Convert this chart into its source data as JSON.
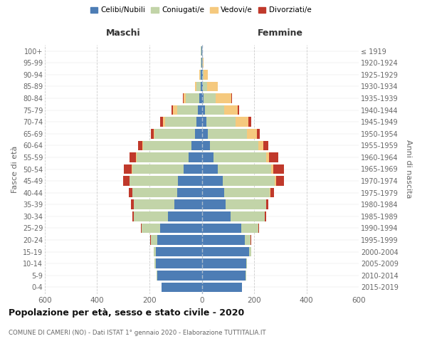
{
  "age_groups": [
    "0-4",
    "5-9",
    "10-14",
    "15-19",
    "20-24",
    "25-29",
    "30-34",
    "35-39",
    "40-44",
    "45-49",
    "50-54",
    "55-59",
    "60-64",
    "65-69",
    "70-74",
    "75-79",
    "80-84",
    "85-89",
    "90-94",
    "95-99",
    "100+"
  ],
  "birth_years": [
    "2015-2019",
    "2010-2014",
    "2005-2009",
    "2000-2004",
    "1995-1999",
    "1990-1994",
    "1985-1989",
    "1980-1984",
    "1975-1979",
    "1970-1974",
    "1965-1969",
    "1960-1964",
    "1955-1959",
    "1950-1954",
    "1945-1949",
    "1940-1944",
    "1935-1939",
    "1930-1934",
    "1925-1929",
    "1920-1924",
    "≤ 1919"
  ],
  "colors": {
    "celibi": "#4d7db5",
    "coniugati": "#c2d4a8",
    "vedovi": "#f5c97e",
    "divorziati": "#c0392b"
  },
  "maschi_celibi": [
    155,
    170,
    175,
    175,
    170,
    160,
    130,
    105,
    95,
    90,
    70,
    50,
    40,
    25,
    20,
    15,
    10,
    5,
    3,
    2,
    2
  ],
  "maschi_coniugati": [
    0,
    2,
    5,
    10,
    25,
    70,
    130,
    155,
    170,
    185,
    195,
    200,
    185,
    155,
    120,
    80,
    50,
    15,
    5,
    2,
    1
  ],
  "maschi_vedovi": [
    0,
    0,
    0,
    0,
    0,
    1,
    1,
    1,
    1,
    2,
    2,
    2,
    3,
    5,
    8,
    15,
    10,
    5,
    1,
    0,
    0
  ],
  "maschi_divorziati": [
    0,
    0,
    0,
    0,
    1,
    3,
    5,
    10,
    12,
    25,
    30,
    25,
    15,
    10,
    12,
    5,
    2,
    0,
    0,
    0,
    0
  ],
  "femmine_nubili": [
    155,
    168,
    170,
    180,
    165,
    150,
    110,
    90,
    85,
    80,
    60,
    45,
    30,
    22,
    18,
    12,
    8,
    5,
    3,
    2,
    1
  ],
  "femmine_coniugate": [
    0,
    2,
    4,
    8,
    22,
    65,
    130,
    155,
    175,
    200,
    205,
    200,
    185,
    150,
    110,
    75,
    45,
    15,
    5,
    2,
    1
  ],
  "femmine_vedove": [
    0,
    0,
    0,
    0,
    0,
    1,
    1,
    2,
    3,
    5,
    8,
    12,
    20,
    40,
    50,
    50,
    60,
    40,
    15,
    2,
    0
  ],
  "femmine_divorziate": [
    0,
    0,
    0,
    0,
    1,
    3,
    5,
    8,
    12,
    30,
    40,
    35,
    20,
    10,
    12,
    5,
    3,
    2,
    1,
    0,
    0
  ],
  "xlim": 600,
  "xticks": [
    -600,
    -400,
    -200,
    0,
    200,
    400,
    600
  ],
  "title": "Popolazione per età, sesso e stato civile - 2020",
  "subtitle": "COMUNE DI CAMERI (NO) - Dati ISTAT 1° gennaio 2020 - Elaborazione TUTTITALIA.IT",
  "legend_labels": [
    "Celibi/Nubili",
    "Coniugati/e",
    "Vedovi/e",
    "Divorziati/e"
  ],
  "ylabel_left": "Fasce di età",
  "ylabel_right": "Anni di nascita",
  "maschi_label": "Maschi",
  "femmine_label": "Femmine",
  "bg_color": "#ffffff",
  "grid_color": "#cccccc",
  "text_color": "#666666",
  "title_color": "#111111",
  "bar_height": 0.82
}
